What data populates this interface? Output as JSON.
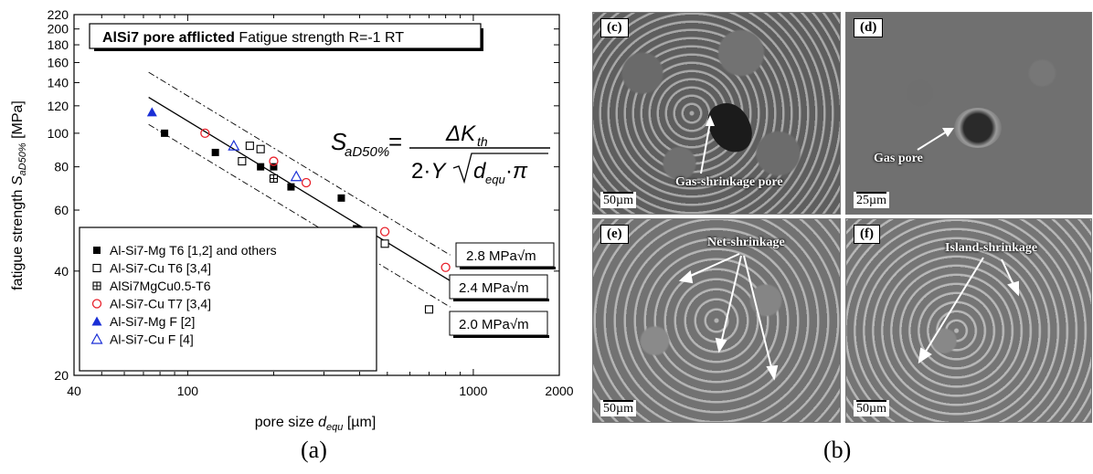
{
  "chart_data": {
    "type": "scatter",
    "title": "AlSi7 pore afflicted",
    "title_suffix": "Fatigue strength R=-1 RT",
    "xlabel": "pore size d_equ [µm]",
    "ylabel": "fatigue strength S_aD50% [MPa]",
    "x_scale": "log",
    "y_scale": "log",
    "xlim": [
      40,
      2000
    ],
    "ylim": [
      20,
      220
    ],
    "x_ticks": [
      "40",
      "100",
      "1000",
      "2000"
    ],
    "y_ticks": [
      "20",
      "40",
      "60",
      "80",
      "100",
      "120",
      "140",
      "160",
      "180",
      "200",
      "220"
    ],
    "formula": "S_aD50% = ΔK_th / (2·Y·√(d_equ·π))",
    "series": [
      {
        "name": "Al-Si7-Mg T6 [1,2] and others",
        "marker": "square-filled",
        "color": "#000000",
        "x": [
          83,
          125,
          180,
          200,
          230,
          345,
          390
        ],
        "y": [
          100,
          88,
          80,
          80,
          70,
          65,
          53
        ]
      },
      {
        "name": "Al-Si7-Cu T6 [3,4]",
        "marker": "square-open",
        "color": "#000000",
        "x": [
          155,
          165,
          180,
          490,
          700
        ],
        "y": [
          83,
          92,
          90,
          48,
          31
        ]
      },
      {
        "name": "AlSi7MgCu0.5-T6",
        "marker": "square-cross",
        "color": "#000000",
        "x": [
          200
        ],
        "y": [
          74
        ]
      },
      {
        "name": "Al-Si7-Cu T7 [3,4]",
        "marker": "circle-open",
        "color": "#e8202a",
        "x": [
          115,
          200,
          260,
          490,
          800
        ],
        "y": [
          100,
          83,
          72,
          52,
          41
        ]
      },
      {
        "name": "Al-Si7-Mg F [2]",
        "marker": "triangle-filled",
        "color": "#1a2fd6",
        "x": [
          75
        ],
        "y": [
          115
        ]
      },
      {
        "name": "Al-Si7-Cu F [4]",
        "marker": "triangle-open",
        "color": "#1a2fd6",
        "x": [
          145,
          240
        ],
        "y": [
          92,
          75
        ]
      }
    ],
    "lines": [
      {
        "label": "2.8 MPa√m",
        "style": "dash-dot",
        "x": [
          73,
          830
        ],
        "y": [
          150,
          44.5
        ]
      },
      {
        "label": "2.4 MPa√m",
        "style": "solid",
        "x": [
          73,
          830
        ],
        "y": [
          127,
          37.5
        ]
      },
      {
        "label": "2.0 MPa√m",
        "style": "dash-dot",
        "x": [
          73,
          830
        ],
        "y": [
          106,
          31.5
        ]
      }
    ],
    "legend_position": "bottom-left"
  },
  "panels": {
    "c": {
      "label": "(c)",
      "annotation": "Gas-shrinkage pore",
      "scale": "50µm"
    },
    "d": {
      "label": "(d)",
      "annotation": "Gas pore",
      "scale": "25µm"
    },
    "e": {
      "label": "(e)",
      "annotation": "Net-shrinkage",
      "scale": "50µm"
    },
    "f": {
      "label": "(f)",
      "annotation": "Island-shrinkage",
      "scale": "50µm"
    }
  },
  "captions": {
    "a": "(a)",
    "b": "(b)"
  }
}
